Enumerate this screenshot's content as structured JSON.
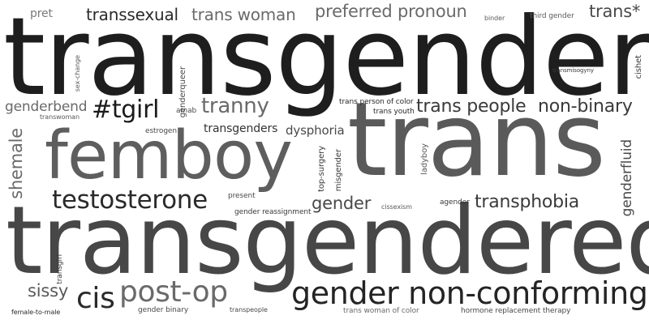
{
  "colors": {
    "background": "#ffffff",
    "darkest": "#1e1e1e",
    "dark": "#333333",
    "mid_dark": "#4a4a4a",
    "mid": "#5e5e5e",
    "light": "#7a7a7a"
  },
  "words": {
    "transgender": "transgender",
    "trans": "trans",
    "transgendered": "transgendered",
    "femboy": "femboy",
    "gender_non_conforming": "gender non-conforming",
    "testosterone": "testosterone",
    "post_op": "post-op",
    "tgirl": "#tgirl",
    "trans_people": "trans people",
    "non_binary": "non-binary",
    "transphobia": "transphobia",
    "tranny": "tranny",
    "cis": "cis",
    "preferred_pronoun": "preferred pronoun",
    "trans_woman": "trans woman",
    "transsexual": "transsexual",
    "trans_star": "trans*",
    "shemale": "shemale",
    "genderbend": "genderbend",
    "gender": "gender",
    "sissy": "sissy",
    "pret": "pret",
    "genderfluid": "genderfluid",
    "transgenders": "transgenders",
    "dysphoria": "dysphoria",
    "genderqueer": "genderqueer",
    "sex_change": "sex-change",
    "transwoman": "transwoman",
    "estrogen": "estrogen",
    "amab": "amab",
    "trans_person_of_color": "trans person of color",
    "trans_youth": "trans youth",
    "top_surgery": "top-surgery",
    "misgender": "misgender",
    "ladyboy": "ladyboy",
    "present": "present",
    "gender_reassignment": "gender reassignment",
    "cissexism": "cissexism",
    "agender": "agender",
    "transgirl": "transgirl",
    "female_to_male": "female-to-male",
    "gender_binary": "gender binary",
    "transpeople": "transpeople",
    "trans_woman_of_color": "trans woman of color",
    "hormone_replacement_therapy": "hormone replacement therapy",
    "binder": "binder",
    "third_gender": "third gender",
    "transmisogyny": "transmisogyny",
    "cishet": "cishet"
  }
}
